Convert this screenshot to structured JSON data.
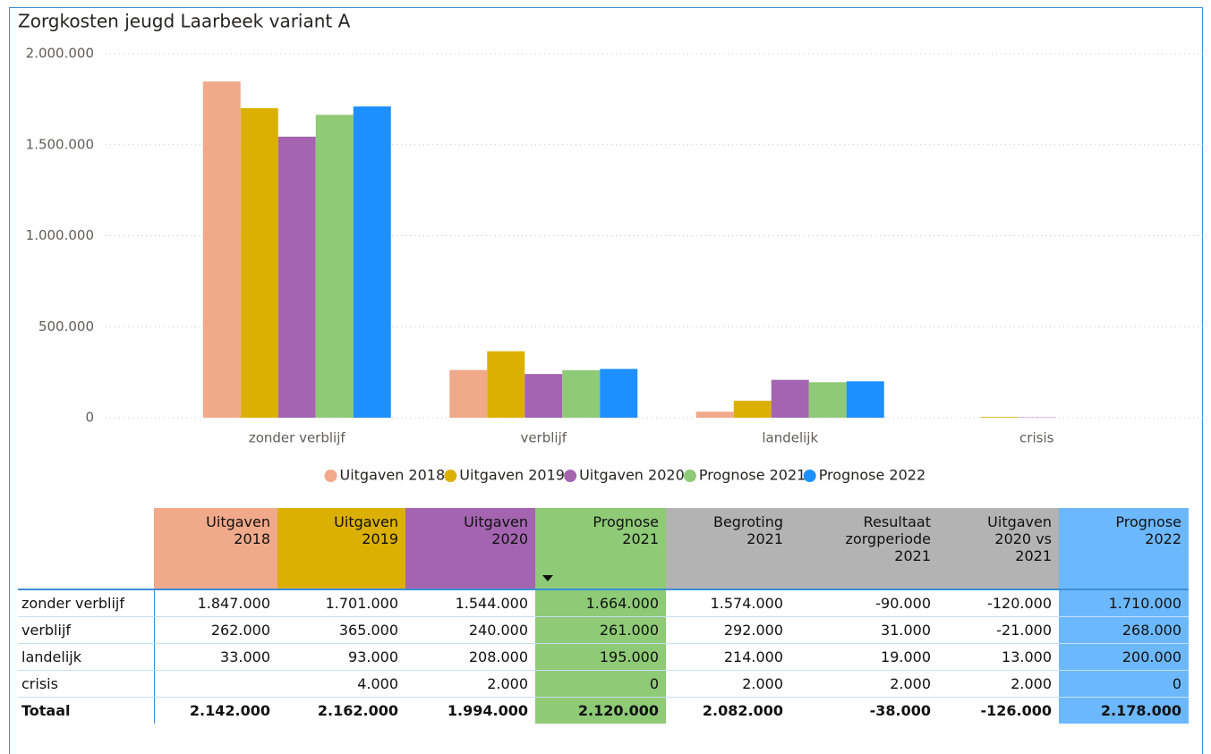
{
  "chart_data": {
    "type": "bar",
    "title": "Zorgkosten jeugd Laarbeek variant A",
    "categories": [
      "zonder verblijf",
      "verblijf",
      "landelijk",
      "crisis"
    ],
    "series": [
      {
        "name": "Uitgaven 2018",
        "color": "#f0a98a",
        "values": [
          1847000,
          262000,
          33000,
          null
        ]
      },
      {
        "name": "Uitgaven 2019",
        "color": "#dbb000",
        "values": [
          1701000,
          365000,
          93000,
          4000
        ]
      },
      {
        "name": "Uitgaven 2020",
        "color": "#a464b0",
        "values": [
          1544000,
          240000,
          208000,
          2000
        ]
      },
      {
        "name": "Prognose 2021",
        "color": "#8fca77",
        "values": [
          1664000,
          261000,
          195000,
          0
        ]
      },
      {
        "name": "Prognose 2022",
        "color": "#1e8fff",
        "values": [
          1710000,
          268000,
          200000,
          0
        ]
      }
    ],
    "ylim": [
      0,
      2000000
    ],
    "yticks": [
      0,
      {
        "value": 500000,
        "label": "500.000"
      },
      {
        "value": 1000000,
        "label": "1.000.000"
      },
      {
        "value": 1500000,
        "label": "1.500.000"
      },
      {
        "value": 2000000,
        "label": "2.000.000"
      }
    ],
    "grid": true,
    "legend": "bottom"
  },
  "table": {
    "columns": [
      "Uitgaven\n2018",
      "Uitgaven\n2019",
      "Uitgaven\n2020",
      "Prognose\n2021",
      "Begroting\n2021",
      "Resultaat\nzorgperiode\n2021",
      "Uitgaven\n2020 vs\n2021",
      "Prognose\n2022"
    ],
    "column_colors": [
      "#f0a98a",
      "#dbb000",
      "#a464b0",
      "#8fca77",
      "#b3b3b3",
      "#b3b3b3",
      "#b3b3b3",
      "#6cb8ff"
    ],
    "rows": [
      {
        "label": "zonder verblijf",
        "cells": [
          "1.847.000",
          "1.701.000",
          "1.544.000",
          "1.664.000",
          "1.574.000",
          "-90.000",
          "-120.000",
          "1.710.000"
        ]
      },
      {
        "label": "verblijf",
        "cells": [
          "262.000",
          "365.000",
          "240.000",
          "261.000",
          "292.000",
          "31.000",
          "-21.000",
          "268.000"
        ]
      },
      {
        "label": "landelijk",
        "cells": [
          "33.000",
          "93.000",
          "208.000",
          "195.000",
          "214.000",
          "19.000",
          "13.000",
          "200.000"
        ]
      },
      {
        "label": "crisis",
        "cells": [
          null,
          "4.000",
          "2.000",
          "0",
          "2.000",
          "2.000",
          "2.000",
          "0"
        ]
      },
      {
        "label": "Totaal",
        "cells": [
          "2.142.000",
          "2.162.000",
          "1.994.000",
          "2.120.000",
          "2.082.000",
          "-38.000",
          "-126.000",
          "2.178.000"
        ]
      }
    ]
  }
}
